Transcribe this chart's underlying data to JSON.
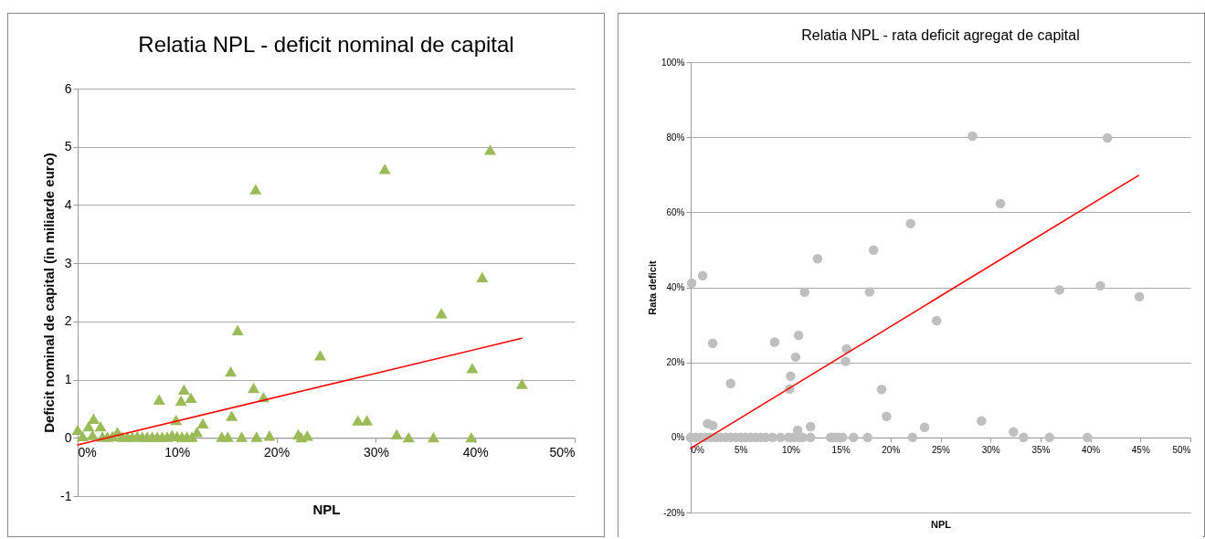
{
  "chart_data": [
    {
      "type": "scatter",
      "title": "Relatia NPL - deficit nominal de capital",
      "xlabel": "NPL",
      "ylabel": "Deficit nominal de capital (in miliarde euro)",
      "grid": "y",
      "xlim": [
        0,
        50
      ],
      "xticks": [
        {
          "value": 0,
          "label": "0%"
        },
        {
          "value": 10,
          "label": "10%"
        },
        {
          "value": 20,
          "label": "20%"
        },
        {
          "value": 30,
          "label": "30%"
        },
        {
          "value": 40,
          "label": "40%"
        },
        {
          "value": 50,
          "label": "50%"
        }
      ],
      "ylim": [
        -1,
        6
      ],
      "yticks": [
        -1,
        0,
        1,
        2,
        3,
        4,
        5,
        6
      ],
      "series": [
        {
          "type": "scatter",
          "marker": "triangle",
          "color": "#9bbb59",
          "x": [
            0,
            0.5,
            1.1,
            1.6,
            2.3,
            1.5,
            2.5,
            3,
            3.5,
            4,
            4.5,
            5,
            5.5,
            6,
            6.5,
            7,
            7.5,
            8,
            8.2,
            8.5,
            9,
            9.5,
            9.9,
            10,
            10.4,
            10.7,
            10.5,
            11,
            11.4,
            11.5,
            12,
            12.6,
            14.5,
            15.1,
            15.4,
            15.5,
            16.1,
            16.5,
            17.7,
            17.9,
            18,
            18.7,
            19.3,
            22.2,
            22.5,
            23.1,
            24.4,
            28.2,
            29.1,
            30.9,
            32.1,
            33.3,
            35.8,
            36.6,
            39.6,
            39.7,
            40.7,
            41.5,
            44.7
          ],
          "values": [
            0.14,
            0.03,
            0.2,
            0.33,
            0.2,
            0.05,
            0.02,
            0.02,
            0.03,
            0.1,
            0.02,
            0.02,
            0.02,
            0.03,
            0.02,
            0.02,
            0.02,
            0.02,
            0.66,
            0.02,
            0.02,
            0.05,
            0.31,
            0.03,
            0.64,
            0.83,
            0.02,
            0.02,
            0.69,
            0.02,
            0.1,
            0.25,
            0.02,
            0.02,
            1.14,
            0.38,
            1.85,
            0.02,
            0.86,
            4.27,
            0.02,
            0.7,
            0.04,
            0.06,
            0.01,
            0.04,
            1.42,
            0.3,
            0.3,
            4.62,
            0.06,
            0.01,
            0.01,
            2.14,
            0.01,
            1.2,
            2.76,
            4.95,
            0.93
          ]
        },
        {
          "type": "line",
          "color": "#ff0000",
          "x": [
            0,
            44.7
          ],
          "values": [
            -0.12,
            1.71
          ]
        }
      ]
    },
    {
      "type": "scatter",
      "title": "Relatia NPL - rata deficit agregat de capital",
      "xlabel": "NPL",
      "ylabel": "Rata deficit",
      "grid": "y",
      "xlim": [
        0,
        50
      ],
      "xticks": [
        {
          "value": 0,
          "label": "0%"
        },
        {
          "value": 5,
          "label": "5%"
        },
        {
          "value": 10,
          "label": "10%"
        },
        {
          "value": 15,
          "label": "15%"
        },
        {
          "value": 20,
          "label": "20%"
        },
        {
          "value": 25,
          "label": "25%"
        },
        {
          "value": 30,
          "label": "30%"
        },
        {
          "value": 35,
          "label": "35%"
        },
        {
          "value": 40,
          "label": "40%"
        },
        {
          "value": 45,
          "label": "45%"
        },
        {
          "value": 50,
          "label": "50%"
        }
      ],
      "ylim": [
        -20,
        100
      ],
      "yticks": [
        {
          "value": -20,
          "label": "-20%"
        },
        {
          "value": 0,
          "label": "0%"
        },
        {
          "value": 20,
          "label": "20%"
        },
        {
          "value": 40,
          "label": "40%"
        },
        {
          "value": 60,
          "label": "60%"
        },
        {
          "value": 80,
          "label": "80%"
        },
        {
          "value": 100,
          "label": "100%"
        }
      ],
      "series": [
        {
          "type": "scatter",
          "marker": "circle",
          "color": "#bfbfbf",
          "x": [
            0,
            0.5,
            1,
            1.5,
            2,
            2.5,
            3,
            3.5,
            4,
            4.5,
            5,
            5.5,
            6,
            6.5,
            7,
            7.5,
            8.2,
            9,
            9.8,
            10.3,
            10.8,
            11.2,
            12.0,
            14.0,
            14.4,
            14.8,
            15.2,
            16.3,
            17.7,
            22.2,
            33.3,
            35.9,
            39.7,
            0.1,
            1.2,
            1.7,
            2.2,
            2.2,
            4.0,
            8.4,
            9.9,
            10.0,
            10.5,
            10.7,
            10.8,
            11.4,
            12.0,
            12.7,
            15.5,
            15.6,
            17.9,
            18.3,
            19.1,
            19.6,
            22.0,
            23.4,
            24.6,
            28.2,
            29.1,
            31.0,
            32.3,
            36.9,
            41.0,
            41.7,
            44.9
          ],
          "values": [
            0,
            0,
            0,
            0,
            0,
            0,
            0,
            0,
            0,
            0,
            0,
            0,
            0,
            0,
            0,
            0,
            0,
            0,
            0,
            0,
            0,
            0,
            0,
            0,
            0,
            0,
            0,
            0,
            0,
            0,
            0,
            0,
            0,
            41.1,
            43.1,
            3.7,
            3.2,
            25.1,
            14.4,
            25.4,
            12.9,
            16.3,
            21.4,
            1.9,
            27.2,
            38.7,
            2.9,
            47.6,
            20.3,
            23.6,
            38.8,
            49.9,
            12.8,
            5.6,
            57,
            2.7,
            31.1,
            80.3,
            4.4,
            62.3,
            1.5,
            39.3,
            40.4,
            79.8,
            37.5
          ]
        },
        {
          "type": "line",
          "color": "#ff0000",
          "x": [
            0,
            44.8
          ],
          "values": [
            -2.9,
            69.8
          ]
        }
      ]
    }
  ]
}
